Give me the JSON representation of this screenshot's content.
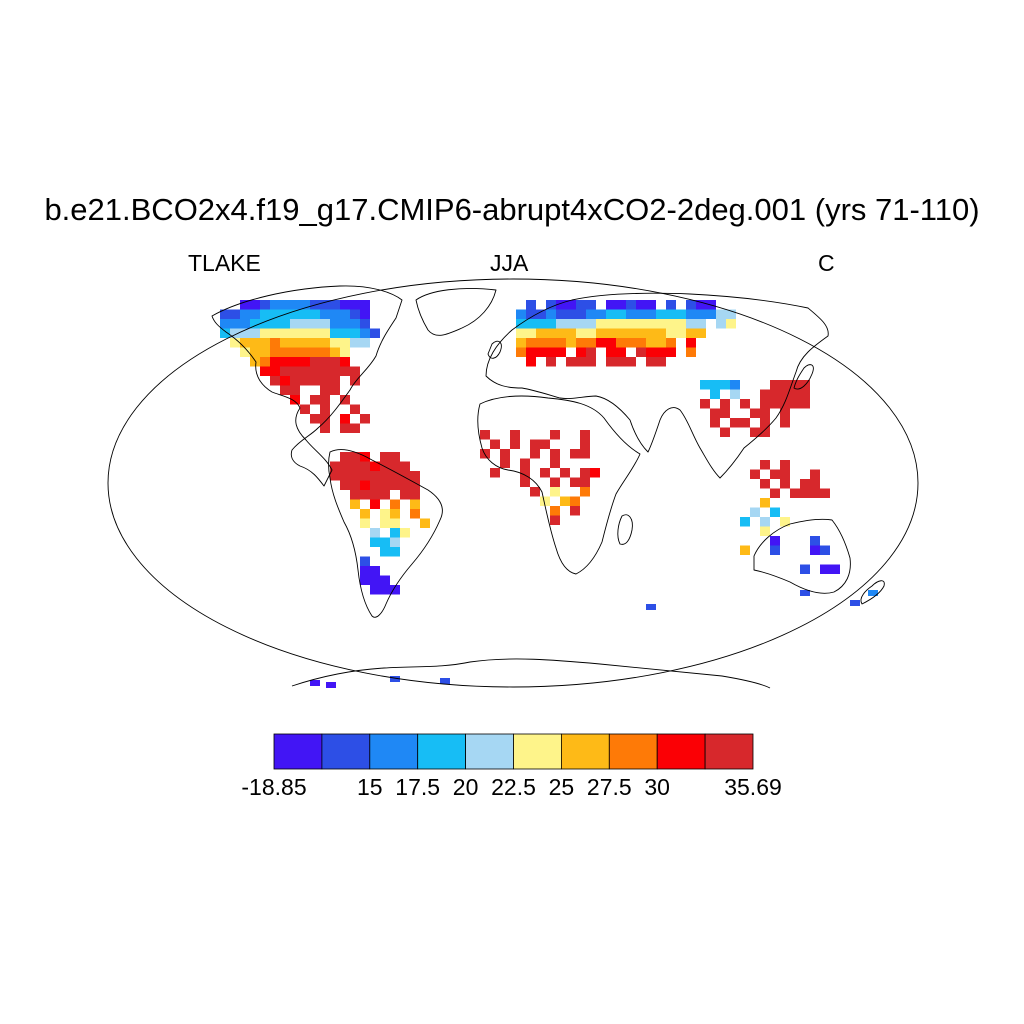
{
  "title": "b.e21.BCO2x4.f19_g17.CMIP6-abrupt4xCO2-2deg.001 (yrs 71-110)",
  "left_label": "TLAKE",
  "center_label": "JJA",
  "right_label": "C",
  "colorbar": {
    "colors": [
      "#4215f5",
      "#2d4fe6",
      "#1f88f5",
      "#17bdf5",
      "#a6d7f3",
      "#fef48a",
      "#feba17",
      "#fe7a07",
      "#fb0005",
      "#d7282c"
    ],
    "labels": [
      {
        "edge": 0,
        "text": "-18.85"
      },
      {
        "edge": 2,
        "text": "15"
      },
      {
        "edge": 3,
        "text": "17.5"
      },
      {
        "edge": 4,
        "text": "20"
      },
      {
        "edge": 5,
        "text": "22.5"
      },
      {
        "edge": 6,
        "text": "25"
      },
      {
        "edge": 7,
        "text": "27.5"
      },
      {
        "edge": 8,
        "text": "30"
      },
      {
        "edge": 10,
        "text": "35.69"
      }
    ]
  }
}
